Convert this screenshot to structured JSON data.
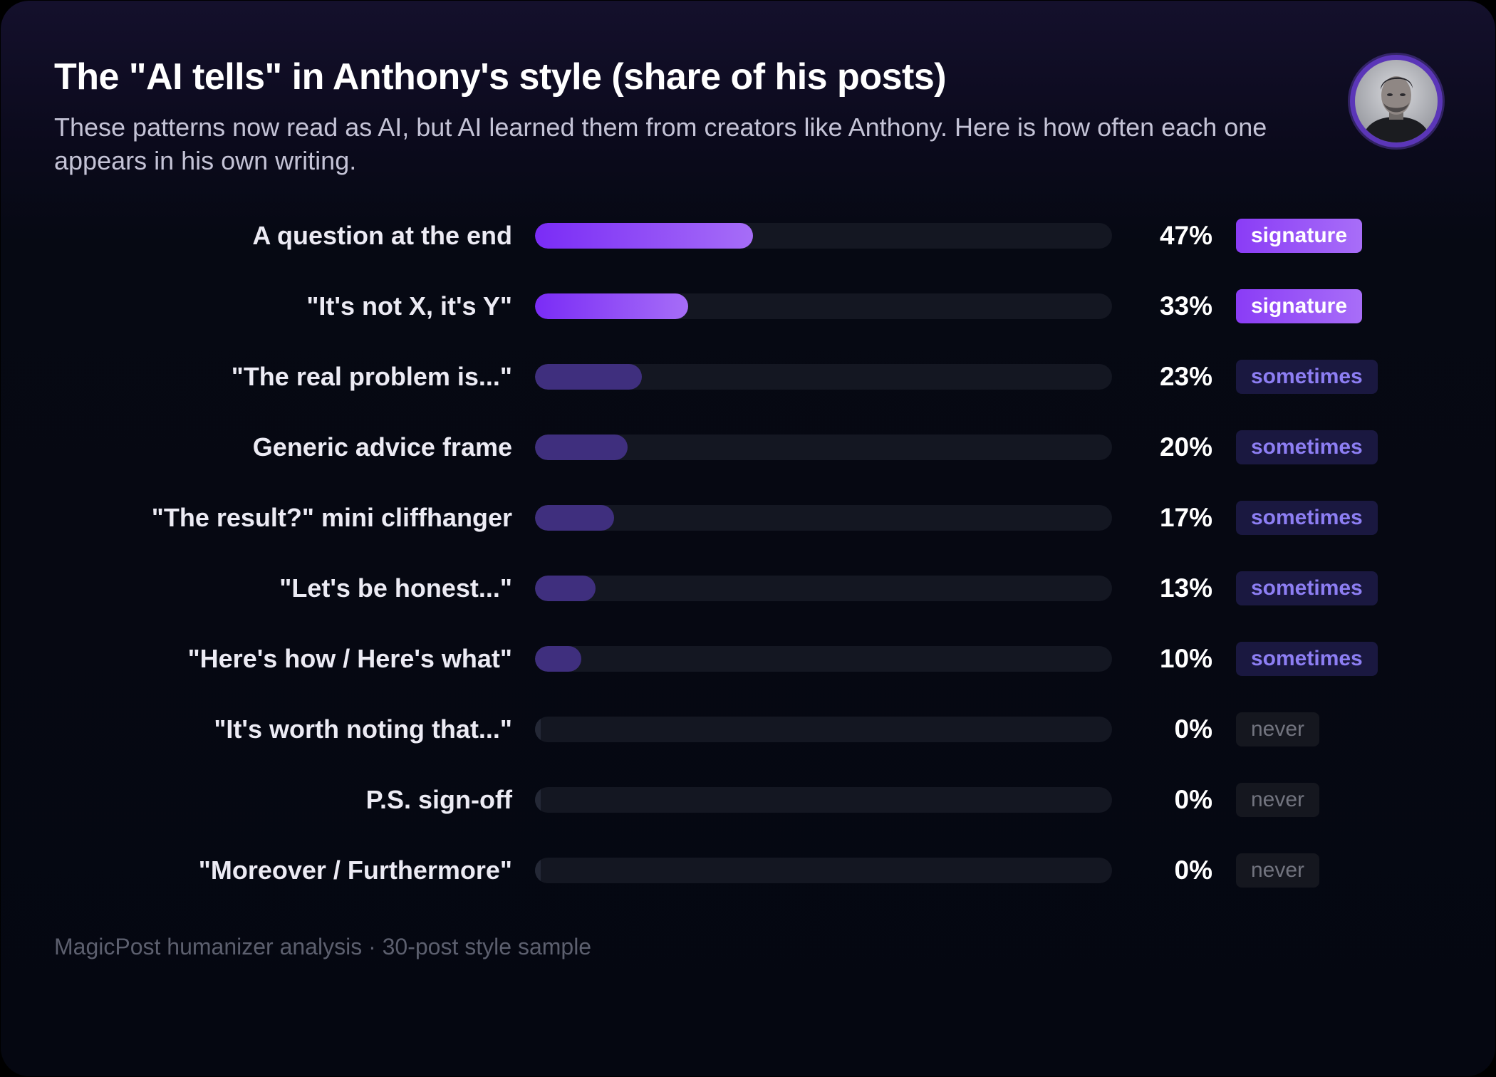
{
  "header": {
    "title": "The \"AI tells\" in Anthony's style (share of his posts)",
    "subtitle": "These patterns now read as AI, but AI learned them from creators like Anthony. Here is how often each one appears in his own writing."
  },
  "avatar": {
    "icon": "person-portrait-icon"
  },
  "colors": {
    "signature": "#8a3cf6",
    "sometimes": "#3f2f7e",
    "never": "#242836",
    "background": "#050711"
  },
  "chart_data": {
    "type": "bar",
    "orientation": "horizontal",
    "title": "The \"AI tells\" in Anthony's style (share of his posts)",
    "xlim": [
      0,
      100
    ],
    "unit": "%",
    "grid": false,
    "categories": [
      "A question at the end",
      "\"It's not X, it's Y\"",
      "\"The real problem is...\"",
      "Generic advice frame",
      "\"The result?\" mini cliffhanger",
      "\"Let's be honest...\"",
      "\"Here's how / Here's what\"",
      "\"It's worth noting that...\"",
      "P.S. sign-off",
      "\"Moreover / Furthermore\""
    ],
    "values": [
      47,
      33,
      23,
      20,
      17,
      13,
      10,
      0,
      0,
      0
    ],
    "value_labels": [
      "47%",
      "33%",
      "23%",
      "20%",
      "17%",
      "13%",
      "10%",
      "0%",
      "0%",
      "0%"
    ],
    "tiers": [
      "signature",
      "signature",
      "sometimes",
      "sometimes",
      "sometimes",
      "sometimes",
      "sometimes",
      "never",
      "never",
      "never"
    ]
  },
  "footer": {
    "source": "MagicPost humanizer analysis · 30-post style sample"
  }
}
